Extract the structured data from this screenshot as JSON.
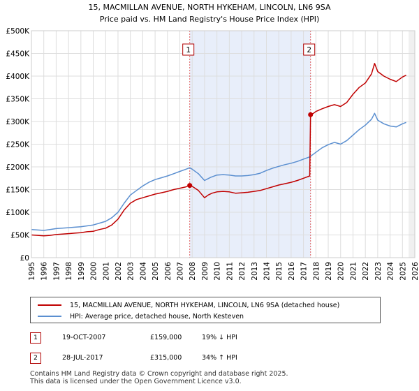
{
  "chart_data": {
    "type": "line",
    "title": "15, MACMILLAN AVENUE, NORTH HYKEHAM, LINCOLN, LN6 9SA",
    "subtitle": "Price paid vs. HM Land Registry's House Price Index (HPI)",
    "xlabel": "",
    "ylabel": "",
    "xlim": [
      1995.0,
      2026.0
    ],
    "ylim": [
      0,
      500000
    ],
    "x_ticks": [
      1995,
      1996,
      1997,
      1998,
      1999,
      2000,
      2001,
      2002,
      2003,
      2004,
      2005,
      2006,
      2007,
      2008,
      2009,
      2010,
      2011,
      2012,
      2013,
      2014,
      2015,
      2016,
      2017,
      2018,
      2019,
      2020,
      2021,
      2022,
      2023,
      2024,
      2025,
      2026
    ],
    "y_ticks": [
      {
        "value": 0,
        "label": "£0"
      },
      {
        "value": 50000,
        "label": "£50K"
      },
      {
        "value": 100000,
        "label": "£100K"
      },
      {
        "value": 150000,
        "label": "£150K"
      },
      {
        "value": 200000,
        "label": "£200K"
      },
      {
        "value": 250000,
        "label": "£250K"
      },
      {
        "value": 300000,
        "label": "£300K"
      },
      {
        "value": 350000,
        "label": "£350K"
      },
      {
        "value": 400000,
        "label": "£400K"
      },
      {
        "value": 450000,
        "label": "£450K"
      },
      {
        "value": 500000,
        "label": "£500K"
      }
    ],
    "grid": true,
    "shaded_period": [
      2007.8,
      2017.57
    ],
    "series": [
      {
        "name": "15, MACMILLAN AVENUE, NORTH HYKEHAM, LINCOLN, LN6 9SA (detached house)",
        "color": "#c00000",
        "x": [
          1995.0,
          1995.5,
          1996.0,
          1996.5,
          1997.0,
          1997.5,
          1998.0,
          1998.5,
          1999.0,
          1999.5,
          2000.0,
          2000.5,
          2001.0,
          2001.5,
          2002.0,
          2002.5,
          2003.0,
          2003.5,
          2004.0,
          2004.5,
          2005.0,
          2005.5,
          2006.0,
          2006.5,
          2007.0,
          2007.5,
          2007.8,
          2008.0,
          2008.5,
          2009.0,
          2009.3,
          2009.6,
          2010.0,
          2010.5,
          2011.0,
          2011.5,
          2012.0,
          2012.5,
          2013.0,
          2013.5,
          2014.0,
          2014.5,
          2015.0,
          2015.5,
          2016.0,
          2016.5,
          2017.0,
          2017.5,
          2017.57,
          2017.8,
          2018.0,
          2018.5,
          2019.0,
          2019.5,
          2020.0,
          2020.5,
          2021.0,
          2021.5,
          2022.0,
          2022.5,
          2022.75,
          2023.0,
          2023.5,
          2024.0,
          2024.5,
          2025.0,
          2025.3
        ],
        "values": [
          50000,
          49000,
          48000,
          49000,
          51000,
          52000,
          53000,
          54000,
          55000,
          57000,
          58000,
          62000,
          65000,
          72000,
          85000,
          105000,
          120000,
          128000,
          132000,
          136000,
          140000,
          143000,
          146000,
          150000,
          153000,
          156000,
          159000,
          157000,
          148000,
          132000,
          138000,
          142000,
          145000,
          146000,
          145000,
          142000,
          143000,
          144000,
          146000,
          148000,
          152000,
          156000,
          160000,
          163000,
          166000,
          170000,
          175000,
          180000,
          315000,
          318000,
          322000,
          328000,
          333000,
          337000,
          333000,
          342000,
          360000,
          375000,
          385000,
          405000,
          428000,
          410000,
          400000,
          393000,
          388000,
          398000,
          402000
        ]
      },
      {
        "name": "HPI: Average price, detached house, North Kesteven",
        "color": "#5b8fd0",
        "x": [
          1995.0,
          1995.5,
          1996.0,
          1996.5,
          1997.0,
          1997.5,
          1998.0,
          1998.5,
          1999.0,
          1999.5,
          2000.0,
          2000.5,
          2001.0,
          2001.5,
          2002.0,
          2002.5,
          2003.0,
          2003.5,
          2004.0,
          2004.5,
          2005.0,
          2005.5,
          2006.0,
          2006.5,
          2007.0,
          2007.5,
          2007.8,
          2008.0,
          2008.5,
          2009.0,
          2009.5,
          2010.0,
          2010.5,
          2011.0,
          2011.5,
          2012.0,
          2012.5,
          2013.0,
          2013.5,
          2014.0,
          2014.5,
          2015.0,
          2015.5,
          2016.0,
          2016.5,
          2017.0,
          2017.5,
          2018.0,
          2018.5,
          2019.0,
          2019.5,
          2020.0,
          2020.5,
          2021.0,
          2021.5,
          2022.0,
          2022.5,
          2022.75,
          2023.0,
          2023.5,
          2024.0,
          2024.5,
          2025.0,
          2025.3
        ],
        "values": [
          62000,
          61000,
          60000,
          62000,
          64000,
          65000,
          66000,
          67000,
          68000,
          70000,
          72000,
          76000,
          80000,
          88000,
          100000,
          120000,
          138000,
          148000,
          158000,
          166000,
          172000,
          176000,
          180000,
          185000,
          190000,
          195000,
          198000,
          195000,
          185000,
          170000,
          177000,
          182000,
          183000,
          182000,
          180000,
          180000,
          181000,
          183000,
          186000,
          192000,
          197000,
          201000,
          205000,
          208000,
          212000,
          217000,
          222000,
          232000,
          242000,
          249000,
          254000,
          250000,
          258000,
          270000,
          282000,
          292000,
          305000,
          318000,
          303000,
          295000,
          290000,
          288000,
          295000,
          298000
        ]
      }
    ],
    "annotations": [
      {
        "label": "1",
        "x": 2007.8,
        "value": 159000
      },
      {
        "label": "2",
        "x": 2017.57,
        "value": 315000
      }
    ]
  },
  "legend": {
    "items": [
      {
        "label": "15, MACMILLAN AVENUE, NORTH HYKEHAM, LINCOLN, LN6 9SA (detached house)",
        "color": "#c00000"
      },
      {
        "label": "HPI: Average price, detached house, North Kesteven",
        "color": "#5b8fd0"
      }
    ]
  },
  "transactions": [
    {
      "num": "1",
      "date": "19-OCT-2007",
      "price": "£159,000",
      "hpi": "19% ↓ HPI"
    },
    {
      "num": "2",
      "date": "28-JUL-2017",
      "price": "£315,000",
      "hpi": "34% ↑ HPI"
    }
  ],
  "footer": {
    "line1": "Contains HM Land Registry data © Crown copyright and database right 2025.",
    "line2": "This data is licensed under the Open Government Licence v3.0."
  }
}
